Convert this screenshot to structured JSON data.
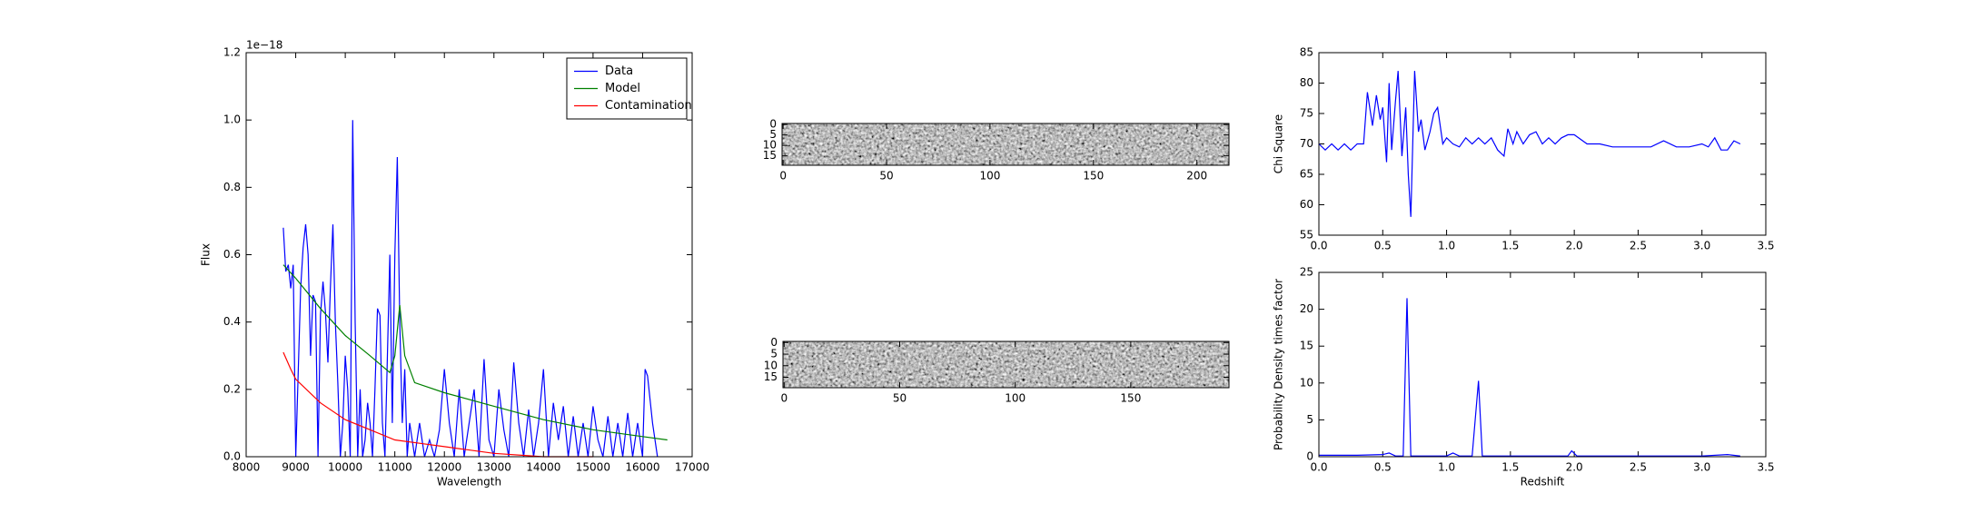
{
  "chart_data": [
    {
      "type": "line",
      "xlabel": "Wavelength",
      "ylabel": "Flux",
      "offset_text": "1e−18",
      "xlim": [
        8000,
        17000
      ],
      "xticks": [
        8000,
        9000,
        10000,
        11000,
        12000,
        13000,
        14000,
        15000,
        16000,
        17000
      ],
      "ylim": [
        0,
        1.2
      ],
      "yticks": [
        {
          "value": 0,
          "label": "0.0"
        },
        {
          "value": 0.2,
          "label": "0.2"
        },
        {
          "value": 0.4,
          "label": "0.4"
        },
        {
          "value": 0.6,
          "label": "0.6"
        },
        {
          "value": 0.8,
          "label": "0.8"
        },
        {
          "value": 1.0,
          "label": "1.0"
        },
        {
          "value": 1.2,
          "label": "1.2"
        }
      ],
      "legend": "upper right",
      "series": [
        {
          "name": "Data",
          "color": "#0000ff",
          "x": [
            8750,
            8800,
            8850,
            8900,
            8950,
            9000,
            9050,
            9100,
            9150,
            9200,
            9250,
            9300,
            9350,
            9400,
            9450,
            9500,
            9550,
            9600,
            9650,
            9700,
            9750,
            9800,
            9850,
            9900,
            9950,
            10000,
            10050,
            10100,
            10150,
            10200,
            10250,
            10300,
            10350,
            10400,
            10450,
            10500,
            10550,
            10600,
            10650,
            10700,
            10750,
            10800,
            10850,
            10900,
            10950,
            11000,
            11050,
            11100,
            11150,
            11200,
            11250,
            11300,
            11350,
            11400,
            11500,
            11600,
            11700,
            11800,
            11900,
            12000,
            12100,
            12200,
            12300,
            12400,
            12500,
            12600,
            12700,
            12800,
            12900,
            13000,
            13100,
            13200,
            13300,
            13400,
            13500,
            13600,
            13700,
            13800,
            13900,
            14000,
            14100,
            14200,
            14300,
            14400,
            14500,
            14600,
            14700,
            14800,
            14900,
            15000,
            15100,
            15200,
            15300,
            15400,
            15500,
            15600,
            15700,
            15800,
            15900,
            16000,
            16050,
            16100,
            16200,
            16300
          ],
          "values": [
            0.68,
            0.55,
            0.57,
            0.5,
            0.57,
            0.0,
            0.25,
            0.5,
            0.62,
            0.69,
            0.6,
            0.3,
            0.48,
            0.46,
            0.0,
            0.42,
            0.52,
            0.43,
            0.28,
            0.5,
            0.69,
            0.4,
            0.22,
            0.0,
            0.1,
            0.3,
            0.2,
            0.0,
            1.0,
            0.4,
            0.0,
            0.2,
            0.0,
            0.05,
            0.16,
            0.1,
            0.0,
            0.2,
            0.44,
            0.42,
            0.1,
            0.0,
            0.3,
            0.6,
            0.1,
            0.6,
            0.89,
            0.4,
            0.1,
            0.26,
            0.0,
            0.1,
            0.05,
            0.0,
            0.1,
            0.0,
            0.05,
            0.0,
            0.08,
            0.26,
            0.1,
            0.0,
            0.2,
            0.0,
            0.1,
            0.2,
            0.0,
            0.29,
            0.05,
            0.0,
            0.2,
            0.08,
            0.0,
            0.28,
            0.1,
            0.0,
            0.14,
            0.0,
            0.1,
            0.26,
            0.0,
            0.16,
            0.05,
            0.15,
            0.0,
            0.12,
            0.0,
            0.1,
            0.0,
            0.15,
            0.05,
            0.0,
            0.12,
            0.0,
            0.1,
            0.0,
            0.13,
            0.0,
            0.1,
            0.0,
            0.26,
            0.24,
            0.1,
            0.0
          ]
        },
        {
          "name": "Model",
          "color": "#008000",
          "x": [
            8750,
            9000,
            9500,
            10000,
            10500,
            10900,
            11000,
            11100,
            11200,
            11400,
            12000,
            13000,
            14000,
            15000,
            16000,
            16500
          ],
          "values": [
            0.57,
            0.53,
            0.44,
            0.36,
            0.3,
            0.25,
            0.3,
            0.45,
            0.3,
            0.22,
            0.19,
            0.15,
            0.11,
            0.08,
            0.06,
            0.05
          ]
        },
        {
          "name": "Contamination",
          "color": "#ff0000",
          "x": [
            8750,
            8900,
            9000,
            9500,
            10000,
            10500,
            11000,
            11500,
            12000,
            13000,
            14000,
            15000
          ],
          "values": [
            0.31,
            0.26,
            0.23,
            0.16,
            0.11,
            0.08,
            0.05,
            0.04,
            0.03,
            0.01,
            0.0,
            0.0
          ]
        }
      ]
    },
    {
      "type": "image",
      "xlim": [
        -0.5,
        215.5
      ],
      "xticks": [
        0,
        50,
        100,
        150,
        200
      ],
      "ylim": [
        19.5,
        -0.5
      ],
      "yticks": [
        0,
        5,
        10,
        15
      ]
    },
    {
      "type": "image",
      "xlim": [
        -0.5,
        192.5
      ],
      "xticks": [
        0,
        50,
        100,
        150
      ],
      "ylim": [
        19.5,
        -0.5
      ],
      "yticks": [
        0,
        5,
        10,
        15
      ]
    },
    {
      "type": "line",
      "ylabel": "Chi Square",
      "xlim": [
        0,
        3.5
      ],
      "xticks": [
        {
          "value": 0,
          "label": "0.0"
        },
        0.5,
        {
          "value": 1,
          "label": "1.0"
        },
        1.5,
        {
          "value": 2,
          "label": "2.0"
        },
        2.5,
        {
          "value": 3,
          "label": "3.0"
        },
        3.5
      ],
      "ylim": [
        55,
        85
      ],
      "yticks": [
        55,
        60,
        65,
        70,
        75,
        80,
        85
      ],
      "series": [
        {
          "color": "#0000ff",
          "x": [
            0.0,
            0.05,
            0.1,
            0.15,
            0.2,
            0.25,
            0.3,
            0.35,
            0.38,
            0.42,
            0.45,
            0.48,
            0.5,
            0.53,
            0.55,
            0.57,
            0.6,
            0.62,
            0.65,
            0.68,
            0.7,
            0.72,
            0.75,
            0.78,
            0.8,
            0.83,
            0.87,
            0.9,
            0.93,
            0.97,
            1.0,
            1.05,
            1.1,
            1.15,
            1.2,
            1.25,
            1.3,
            1.35,
            1.4,
            1.45,
            1.48,
            1.52,
            1.55,
            1.6,
            1.65,
            1.7,
            1.75,
            1.8,
            1.85,
            1.9,
            1.95,
            2.0,
            2.1,
            2.2,
            2.3,
            2.4,
            2.5,
            2.6,
            2.7,
            2.8,
            2.9,
            3.0,
            3.05,
            3.1,
            3.15,
            3.2,
            3.25,
            3.3
          ],
          "values": [
            70,
            69,
            70,
            69,
            70,
            69,
            70,
            70,
            78.5,
            73,
            78,
            74,
            76,
            67,
            80,
            69,
            77,
            82,
            68,
            76,
            65,
            58,
            82,
            72,
            74,
            69,
            72,
            75,
            76,
            70,
            71,
            70,
            69.5,
            71,
            70,
            71,
            70,
            71,
            69,
            68,
            72.5,
            70,
            72,
            70,
            71.5,
            72,
            70,
            71,
            70,
            71,
            71.5,
            71.5,
            70,
            70,
            69.5,
            69.5,
            69.5,
            69.5,
            70.5,
            69.5,
            69.5,
            70,
            69.5,
            71,
            69,
            69,
            70.5,
            70
          ]
        }
      ]
    },
    {
      "type": "line",
      "xlabel": "Redshift",
      "ylabel": "Probability Density times factor",
      "xlim": [
        0,
        3.5
      ],
      "xticks": [
        {
          "value": 0,
          "label": "0.0"
        },
        0.5,
        {
          "value": 1,
          "label": "1.0"
        },
        1.5,
        {
          "value": 2,
          "label": "2.0"
        },
        2.5,
        {
          "value": 3,
          "label": "3.0"
        },
        3.5
      ],
      "ylim": [
        0,
        25
      ],
      "yticks": [
        0,
        5,
        10,
        15,
        20,
        25
      ],
      "series": [
        {
          "color": "#0000ff",
          "x": [
            0.0,
            0.3,
            0.5,
            0.55,
            0.6,
            0.66,
            0.69,
            0.72,
            0.8,
            1.0,
            1.05,
            1.1,
            1.2,
            1.25,
            1.28,
            1.5,
            1.95,
            1.98,
            2.02,
            2.5,
            3.0,
            3.2,
            3.3
          ],
          "values": [
            0.2,
            0.2,
            0.3,
            0.5,
            0.1,
            0.1,
            21.5,
            0.1,
            0.1,
            0.1,
            0.5,
            0.1,
            0.1,
            10.3,
            0.1,
            0.1,
            0.1,
            0.8,
            0.1,
            0.1,
            0.1,
            0.3,
            0.1
          ]
        }
      ]
    }
  ]
}
